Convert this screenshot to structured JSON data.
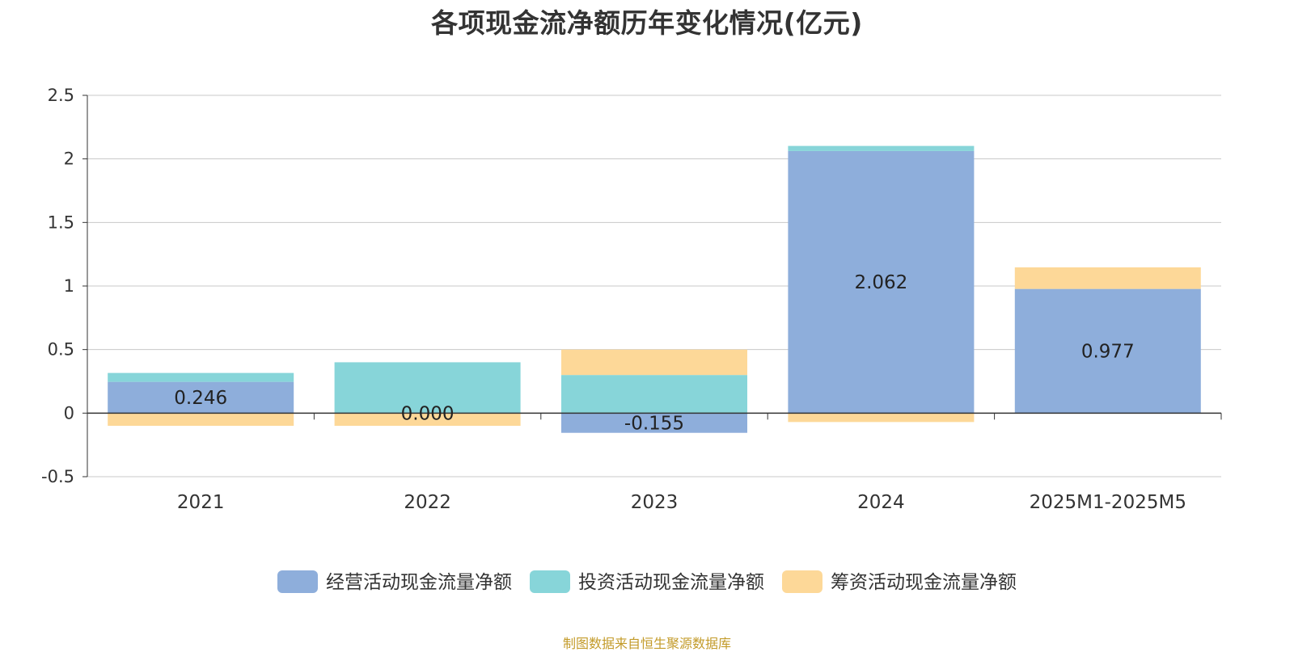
{
  "chart_data": {
    "type": "bar",
    "stacked": true,
    "title": "各项现金流净额历年变化情况(亿元)",
    "categories": [
      "2021",
      "2022",
      "2023",
      "2024",
      "2025M1-2025M5"
    ],
    "series": [
      {
        "name": "经营活动现金流量净额",
        "color": "#8eaedb",
        "values": [
          0.246,
          0.0,
          -0.155,
          2.062,
          0.977
        ],
        "labels": [
          "0.246",
          "0.000",
          "-0.155",
          "2.062",
          "0.977"
        ]
      },
      {
        "name": "投资活动现金流量净额",
        "color": "#87d5d9",
        "values": [
          0.07,
          0.4,
          0.3,
          0.04,
          0.0
        ]
      },
      {
        "name": "筹资活动现金流量净额",
        "color": "#fdd898",
        "values": [
          -0.1,
          -0.1,
          0.2,
          -0.07,
          0.17
        ]
      }
    ],
    "y_ticks": [
      "2.5",
      "2",
      "1.5",
      "1",
      "0.5",
      "0",
      "-0.5"
    ],
    "ylim": [
      -0.5,
      2.5
    ],
    "grid": true,
    "legend_position": "bottom-center",
    "source": "制图数据来自恒生聚源数据库"
  }
}
